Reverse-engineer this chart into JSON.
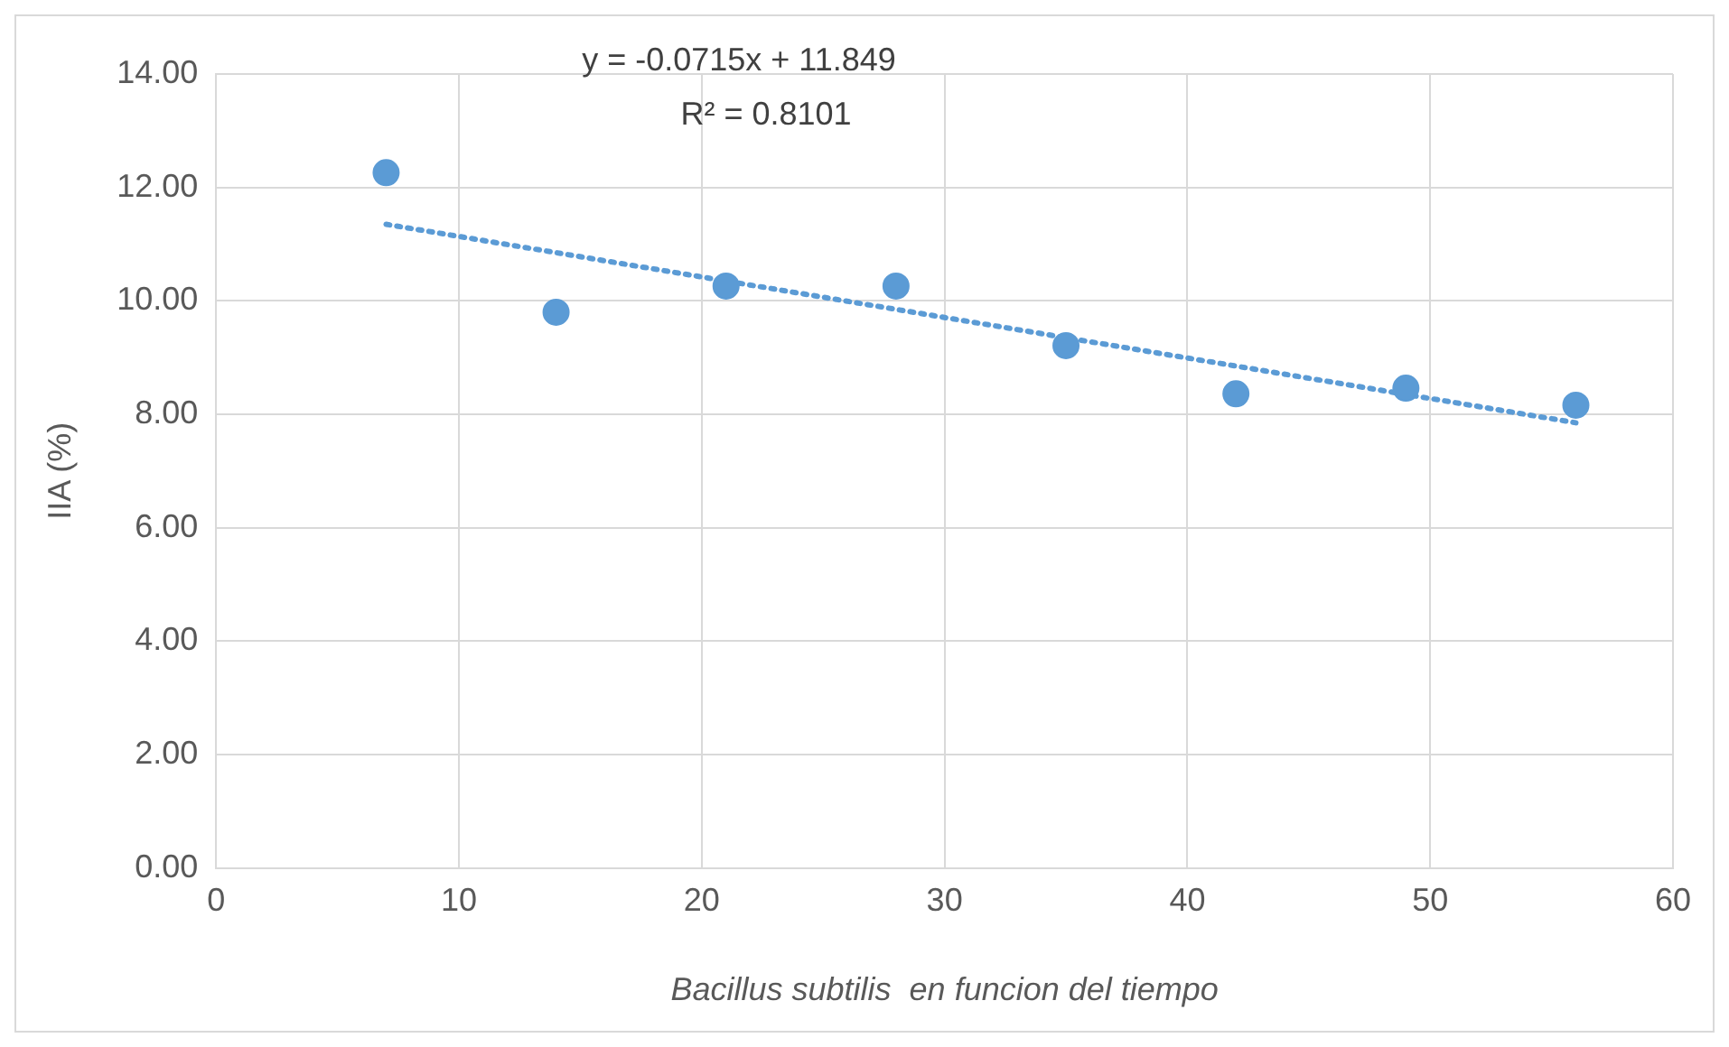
{
  "chart_data": {
    "type": "scatter",
    "xlabel": "Bacillus subtilis  en funcion del tiempo",
    "ylabel": "IIA (%)",
    "annotations": [
      "y = -0.0715x + 11.849",
      "R² = 0.8101"
    ],
    "series": [
      {
        "type": "scatter",
        "color": "#5b9bd5",
        "marker": "circle",
        "x": [
          7,
          14,
          21,
          28,
          35,
          42,
          49,
          56
        ],
        "values": [
          12.26,
          9.8,
          10.26,
          10.26,
          9.21,
          8.36,
          8.46,
          8.16
        ]
      },
      {
        "type": "line",
        "color": "#5b9bd5",
        "marker": "none",
        "line_style": "dotted",
        "x": [
          7,
          56
        ],
        "values": [
          11.35,
          7.85
        ]
      }
    ],
    "xlim": [
      0,
      60
    ],
    "xticks": [
      0,
      10,
      20,
      30,
      40,
      50,
      60
    ],
    "ylim": [
      0,
      14
    ],
    "yticks": [
      {
        "value": 0,
        "label": "0.00"
      },
      {
        "value": 2,
        "label": "2.00"
      },
      {
        "value": 4,
        "label": "4.00"
      },
      {
        "value": 6,
        "label": "6.00"
      },
      {
        "value": 8,
        "label": "8.00"
      },
      {
        "value": 10,
        "label": "10.00"
      },
      {
        "value": 12,
        "label": "12.00"
      },
      {
        "value": 14,
        "label": "14.00"
      }
    ],
    "grid": true
  }
}
